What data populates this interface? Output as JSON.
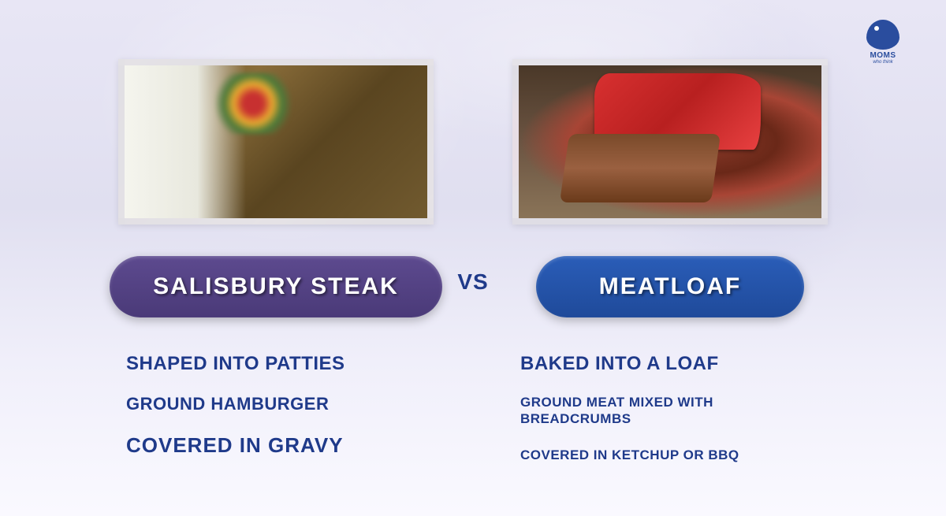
{
  "logo": {
    "brand": "MOMS",
    "tagline": "who think"
  },
  "vs_label": "VS",
  "left": {
    "title": "SALISBURY STEAK",
    "pill_bg_top": "#5d4a8f",
    "pill_bg_bottom": "#4a3a78",
    "image_alt": "salisbury-steak-photo",
    "facts": [
      {
        "text": "SHAPED INTO PATTIES",
        "size": "lg"
      },
      {
        "text": "GROUND HAMBURGER",
        "size": "md"
      },
      {
        "text": "COVERED IN GRAVY",
        "size": "xl"
      }
    ]
  },
  "right": {
    "title": "MEATLOAF",
    "pill_bg_top": "#2a5db8",
    "pill_bg_bottom": "#1f4a9a",
    "image_alt": "meatloaf-photo",
    "facts": [
      {
        "text": "BAKED INTO A LOAF",
        "size": "lg"
      },
      {
        "text": "GROUND MEAT MIXED WITH BREADCRUMBS",
        "size": "sm"
      },
      {
        "text": "COVERED IN KETCHUP OR BBQ",
        "size": "sm"
      }
    ]
  },
  "colors": {
    "text_primary": "#1f3a8a",
    "bg_gradient_start": "#e8e6f5",
    "bg_gradient_end": "#faf9ff"
  }
}
